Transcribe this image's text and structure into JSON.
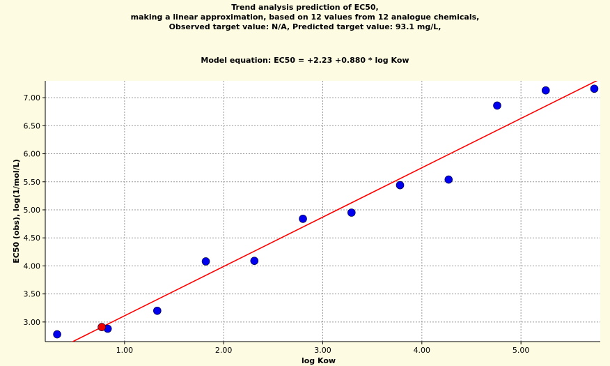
{
  "chart_data": {
    "type": "scatter",
    "title_lines": [
      "Trend analysis prediction of EC50,",
      "making a linear approximation, based on 12 values from 12 analogue chemicals,",
      "Observed target value: N/A, Predicted target value: 93.1 mg/L,"
    ],
    "subtitle": "Model equation:  EC50 = +2.23 +0.880 * log Kow",
    "xlabel": "log Kow",
    "ylabel": "EC50 (obs), log(1/mol/L)",
    "xlim": [
      0.2,
      5.8
    ],
    "ylim": [
      2.65,
      7.3
    ],
    "xticks": [
      1.0,
      2.0,
      3.0,
      4.0,
      5.0
    ],
    "xtick_labels": [
      "1.00",
      "2.00",
      "3.00",
      "4.00",
      "5.00"
    ],
    "yticks": [
      3.0,
      3.5,
      4.0,
      4.5,
      5.0,
      5.5,
      6.0,
      6.5,
      7.0
    ],
    "ytick_labels": [
      "3.00",
      "3.50",
      "4.00",
      "4.50",
      "5.00",
      "5.50",
      "6.00",
      "6.50",
      "7.00"
    ],
    "grid": true,
    "series": [
      {
        "kind": "analogue-points",
        "color": "#0000ee",
        "points": [
          {
            "x": 0.32,
            "y": 2.78
          },
          {
            "x": 0.83,
            "y": 2.88
          },
          {
            "x": 1.33,
            "y": 3.2
          },
          {
            "x": 1.82,
            "y": 4.08
          },
          {
            "x": 2.31,
            "y": 4.09
          },
          {
            "x": 2.8,
            "y": 4.84
          },
          {
            "x": 3.29,
            "y": 4.95
          },
          {
            "x": 3.78,
            "y": 5.44
          },
          {
            "x": 4.27,
            "y": 5.54
          },
          {
            "x": 4.76,
            "y": 6.86
          },
          {
            "x": 5.25,
            "y": 7.13
          },
          {
            "x": 5.74,
            "y": 7.16
          }
        ]
      },
      {
        "kind": "target-point",
        "color": "#ee0000",
        "points": [
          {
            "x": 0.77,
            "y": 2.91
          }
        ]
      }
    ],
    "trend_line": {
      "color": "#ff0000",
      "intercept": 2.23,
      "slope": 0.88
    },
    "colors": {
      "background": "#fdfbe2",
      "plot_background": "#ffffff",
      "grid": "#999999"
    }
  }
}
